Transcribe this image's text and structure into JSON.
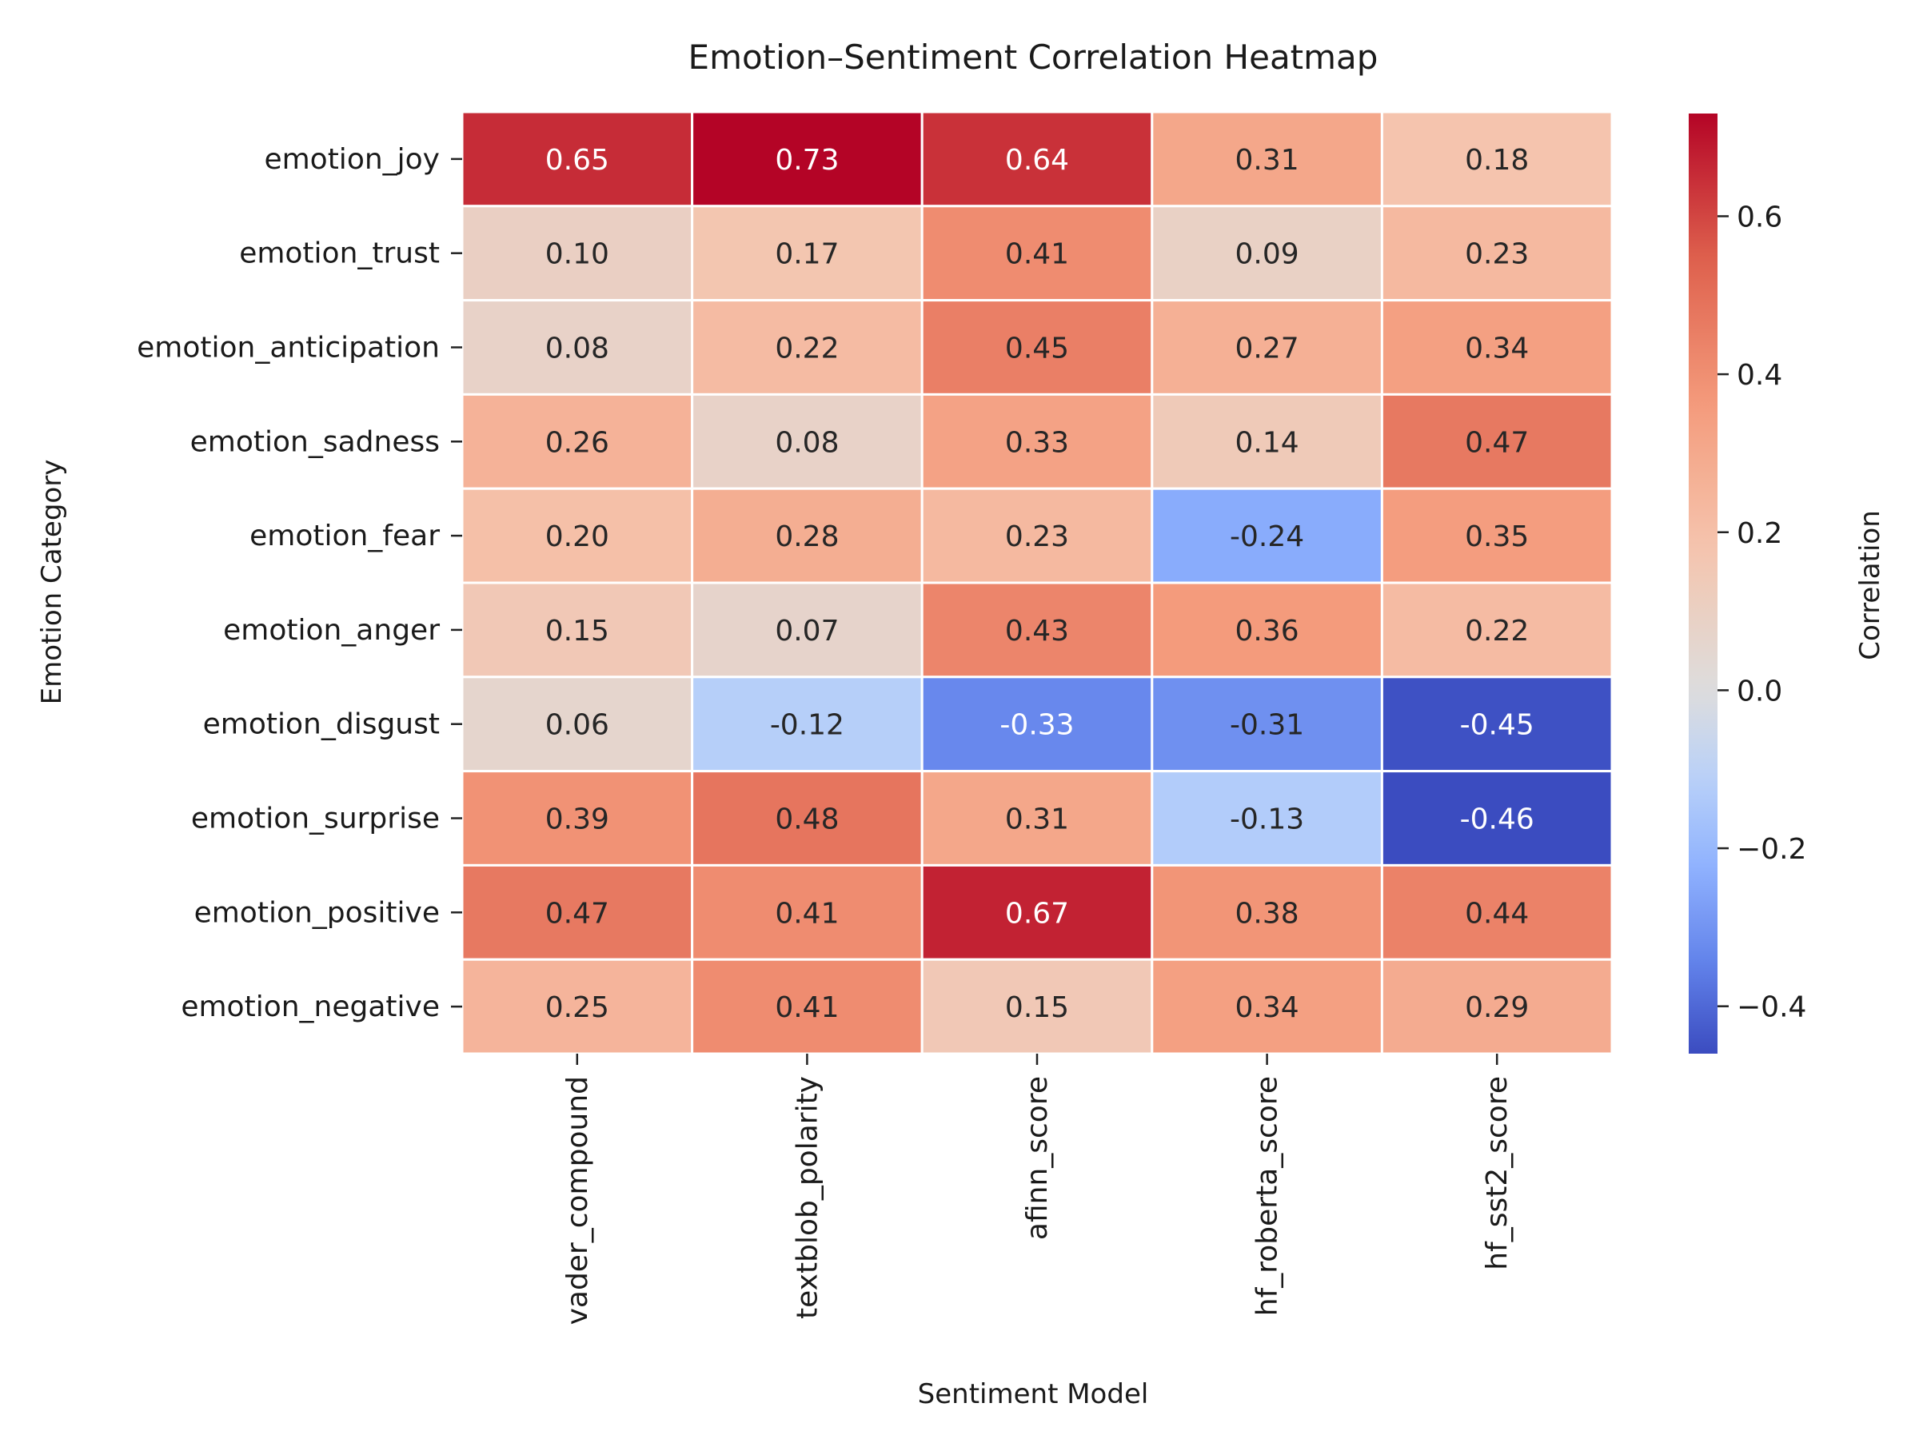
{
  "chart_data": {
    "type": "heatmap",
    "title": "Emotion–Sentiment Correlation Heatmap",
    "xlabel": "Sentiment Model",
    "ylabel": "Emotion Category",
    "colorbar_label": "Correlation",
    "x_categories": [
      "vader_compound",
      "textblob_polarity",
      "afinn_score",
      "hf_roberta_score",
      "hf_sst2_score"
    ],
    "y_categories": [
      "emotion_joy",
      "emotion_trust",
      "emotion_anticipation",
      "emotion_sadness",
      "emotion_fear",
      "emotion_anger",
      "emotion_disgust",
      "emotion_surprise",
      "emotion_positive",
      "emotion_negative"
    ],
    "values": [
      [
        0.65,
        0.73,
        0.64,
        0.31,
        0.18
      ],
      [
        0.1,
        0.17,
        0.41,
        0.09,
        0.23
      ],
      [
        0.08,
        0.22,
        0.45,
        0.27,
        0.34
      ],
      [
        0.26,
        0.08,
        0.33,
        0.14,
        0.47
      ],
      [
        0.2,
        0.28,
        0.23,
        -0.24,
        0.35
      ],
      [
        0.15,
        0.07,
        0.43,
        0.36,
        0.22
      ],
      [
        0.06,
        -0.12,
        -0.33,
        -0.31,
        -0.45
      ],
      [
        0.39,
        0.48,
        0.31,
        -0.13,
        -0.46
      ],
      [
        0.47,
        0.41,
        0.67,
        0.38,
        0.44
      ],
      [
        0.25,
        0.41,
        0.15,
        0.34,
        0.29
      ]
    ],
    "value_range": [
      -0.46,
      0.73
    ],
    "colormap": "coolwarm",
    "center": 0,
    "colorbar_ticks": [
      -0.4,
      -0.2,
      0.0,
      0.2,
      0.4,
      0.6
    ],
    "colorbar_tick_labels": [
      "−0.4",
      "−0.2",
      "0.0",
      "0.2",
      "0.4",
      "0.6"
    ],
    "annotation_format": "0.00",
    "grid": false
  }
}
